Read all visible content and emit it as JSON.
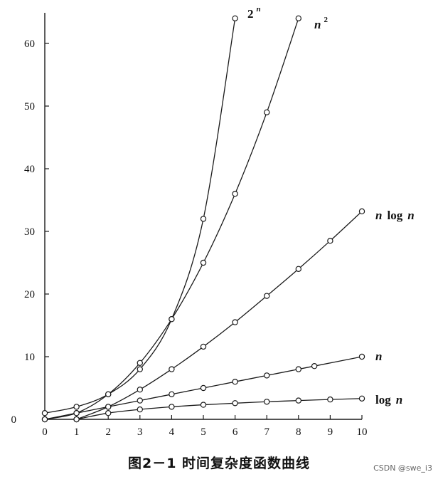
{
  "chart_data": {
    "type": "line",
    "title": "",
    "xlabel": "",
    "ylabel": "",
    "xlim": [
      0,
      10
    ],
    "ylim": [
      0,
      64
    ],
    "x_ticks": [
      0,
      1,
      2,
      3,
      4,
      5,
      6,
      7,
      8,
      9,
      10
    ],
    "y_ticks": [
      10,
      20,
      30,
      40,
      50,
      60
    ],
    "y_origin_label": "0",
    "grid": false,
    "series": [
      {
        "name": "2ⁿ",
        "label_main": "2",
        "label_sup": "n",
        "points": [
          [
            0,
            1
          ],
          [
            1,
            2
          ],
          [
            2,
            4
          ],
          [
            3,
            8
          ],
          [
            4,
            16
          ],
          [
            5,
            32
          ],
          [
            6,
            64
          ]
        ]
      },
      {
        "name": "n²",
        "label_main": "n",
        "label_sup": "2",
        "points": [
          [
            0,
            0
          ],
          [
            1,
            1
          ],
          [
            2,
            4
          ],
          [
            3,
            9
          ],
          [
            4,
            16
          ],
          [
            5,
            25
          ],
          [
            6,
            36
          ],
          [
            7,
            49
          ],
          [
            8,
            64
          ]
        ]
      },
      {
        "name": "n log n",
        "label_parts": [
          "n",
          "log",
          "n"
        ],
        "points": [
          [
            1,
            0
          ],
          [
            2,
            2
          ],
          [
            3,
            4.75
          ],
          [
            4,
            8
          ],
          [
            5,
            11.6
          ],
          [
            6,
            15.5
          ],
          [
            7,
            19.7
          ],
          [
            8,
            24
          ],
          [
            9,
            28.5
          ],
          [
            10,
            33.2
          ]
        ]
      },
      {
        "name": "n",
        "label_parts": [
          "n"
        ],
        "points": [
          [
            0,
            0
          ],
          [
            1,
            1
          ],
          [
            2,
            2
          ],
          [
            3,
            3
          ],
          [
            4,
            4
          ],
          [
            5,
            5
          ],
          [
            6,
            6
          ],
          [
            7,
            7
          ],
          [
            8,
            8
          ],
          [
            8.5,
            8.5
          ],
          [
            10,
            10
          ]
        ]
      },
      {
        "name": "log n",
        "label_parts": [
          "log",
          "n"
        ],
        "points": [
          [
            1,
            0
          ],
          [
            2,
            1
          ],
          [
            3,
            1.58
          ],
          [
            4,
            2
          ],
          [
            5,
            2.32
          ],
          [
            6,
            2.58
          ],
          [
            7,
            2.81
          ],
          [
            8,
            3
          ],
          [
            9,
            3.17
          ],
          [
            10,
            3.32
          ]
        ]
      }
    ]
  },
  "caption": "图2－1 时间复杂度函数曲线",
  "watermark": "CSDN @swe_i3"
}
